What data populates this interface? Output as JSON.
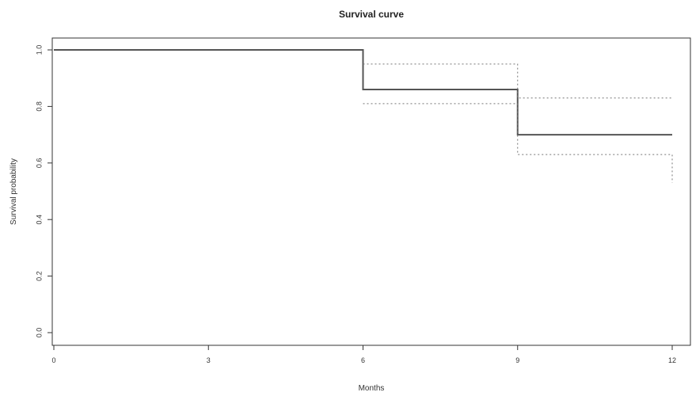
{
  "chart_data": {
    "type": "line",
    "title": "Survival curve",
    "xlabel": "Months",
    "ylabel": "Survival probability",
    "xlim": [
      0,
      12
    ],
    "ylim": [
      0,
      1
    ],
    "x_ticks": [
      0,
      3,
      6,
      9,
      12
    ],
    "y_ticks": [
      0.0,
      0.2,
      0.4,
      0.6,
      0.8,
      1.0
    ],
    "x_tick_labels": [
      "0",
      "3",
      "6",
      "9",
      "12"
    ],
    "y_tick_labels": [
      "0.0",
      "0.2",
      "0.4",
      "0.6",
      "0.8",
      "1.0"
    ],
    "grid": false,
    "legend": "none",
    "step": true,
    "series": [
      {
        "role": "estimate",
        "x": [
          0,
          6,
          9,
          12
        ],
        "y": [
          1.0,
          0.86,
          0.7,
          0.7
        ],
        "color": "#555555",
        "dash": "solid"
      },
      {
        "role": "upper_ci",
        "x": [
          6,
          9,
          12
        ],
        "y": [
          0.95,
          0.83,
          0.83
        ],
        "color": "#777777",
        "dash": "dotted"
      },
      {
        "role": "lower_ci",
        "x": [
          6,
          9,
          12
        ],
        "y": [
          0.81,
          0.63,
          0.53
        ],
        "color": "#777777",
        "dash": "dotted"
      }
    ]
  }
}
